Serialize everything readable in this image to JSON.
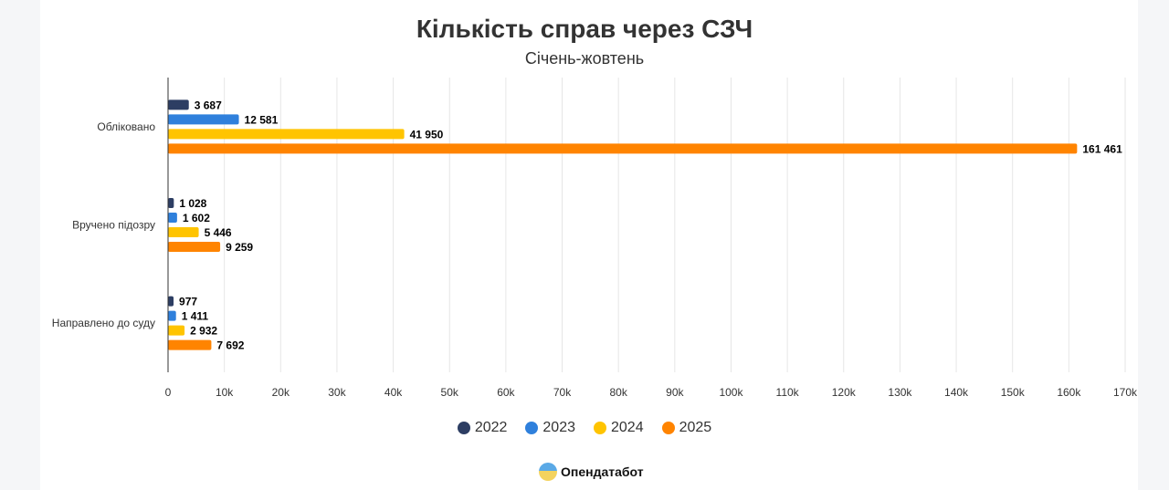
{
  "chart_data": {
    "type": "bar",
    "orientation": "horizontal",
    "title": "Кількість справ через СЗЧ",
    "subtitle": "Січень-жовтень",
    "categories": [
      "Обліковано",
      "Вручено підозру",
      "Направлено до суду"
    ],
    "series": [
      {
        "name": "2022",
        "color": "#2d3e63",
        "values": [
          3687,
          1028,
          977
        ],
        "labels": [
          "3 687",
          "1 028",
          "977"
        ]
      },
      {
        "name": "2023",
        "color": "#2f80dc",
        "values": [
          12581,
          1602,
          1411
        ],
        "labels": [
          "12 581",
          "1 602",
          "1 411"
        ]
      },
      {
        "name": "2024",
        "color": "#ffc400",
        "values": [
          41950,
          5446,
          2932
        ],
        "labels": [
          "41 950",
          "5 446",
          "2 932"
        ]
      },
      {
        "name": "2025",
        "color": "#ff8400",
        "values": [
          161461,
          9259,
          7692
        ],
        "labels": [
          "161 461",
          "9 259",
          "7 692"
        ]
      }
    ],
    "xlim": [
      0,
      170000
    ],
    "x_ticks": [
      "0",
      "10k",
      "20k",
      "30k",
      "40k",
      "50k",
      "60k",
      "70k",
      "80k",
      "90k",
      "100k",
      "110k",
      "120k",
      "130k",
      "140k",
      "150k",
      "160k",
      "170k"
    ],
    "grid": true,
    "legend": "bottom"
  },
  "branding": {
    "logo_text": "Опендатабот"
  }
}
